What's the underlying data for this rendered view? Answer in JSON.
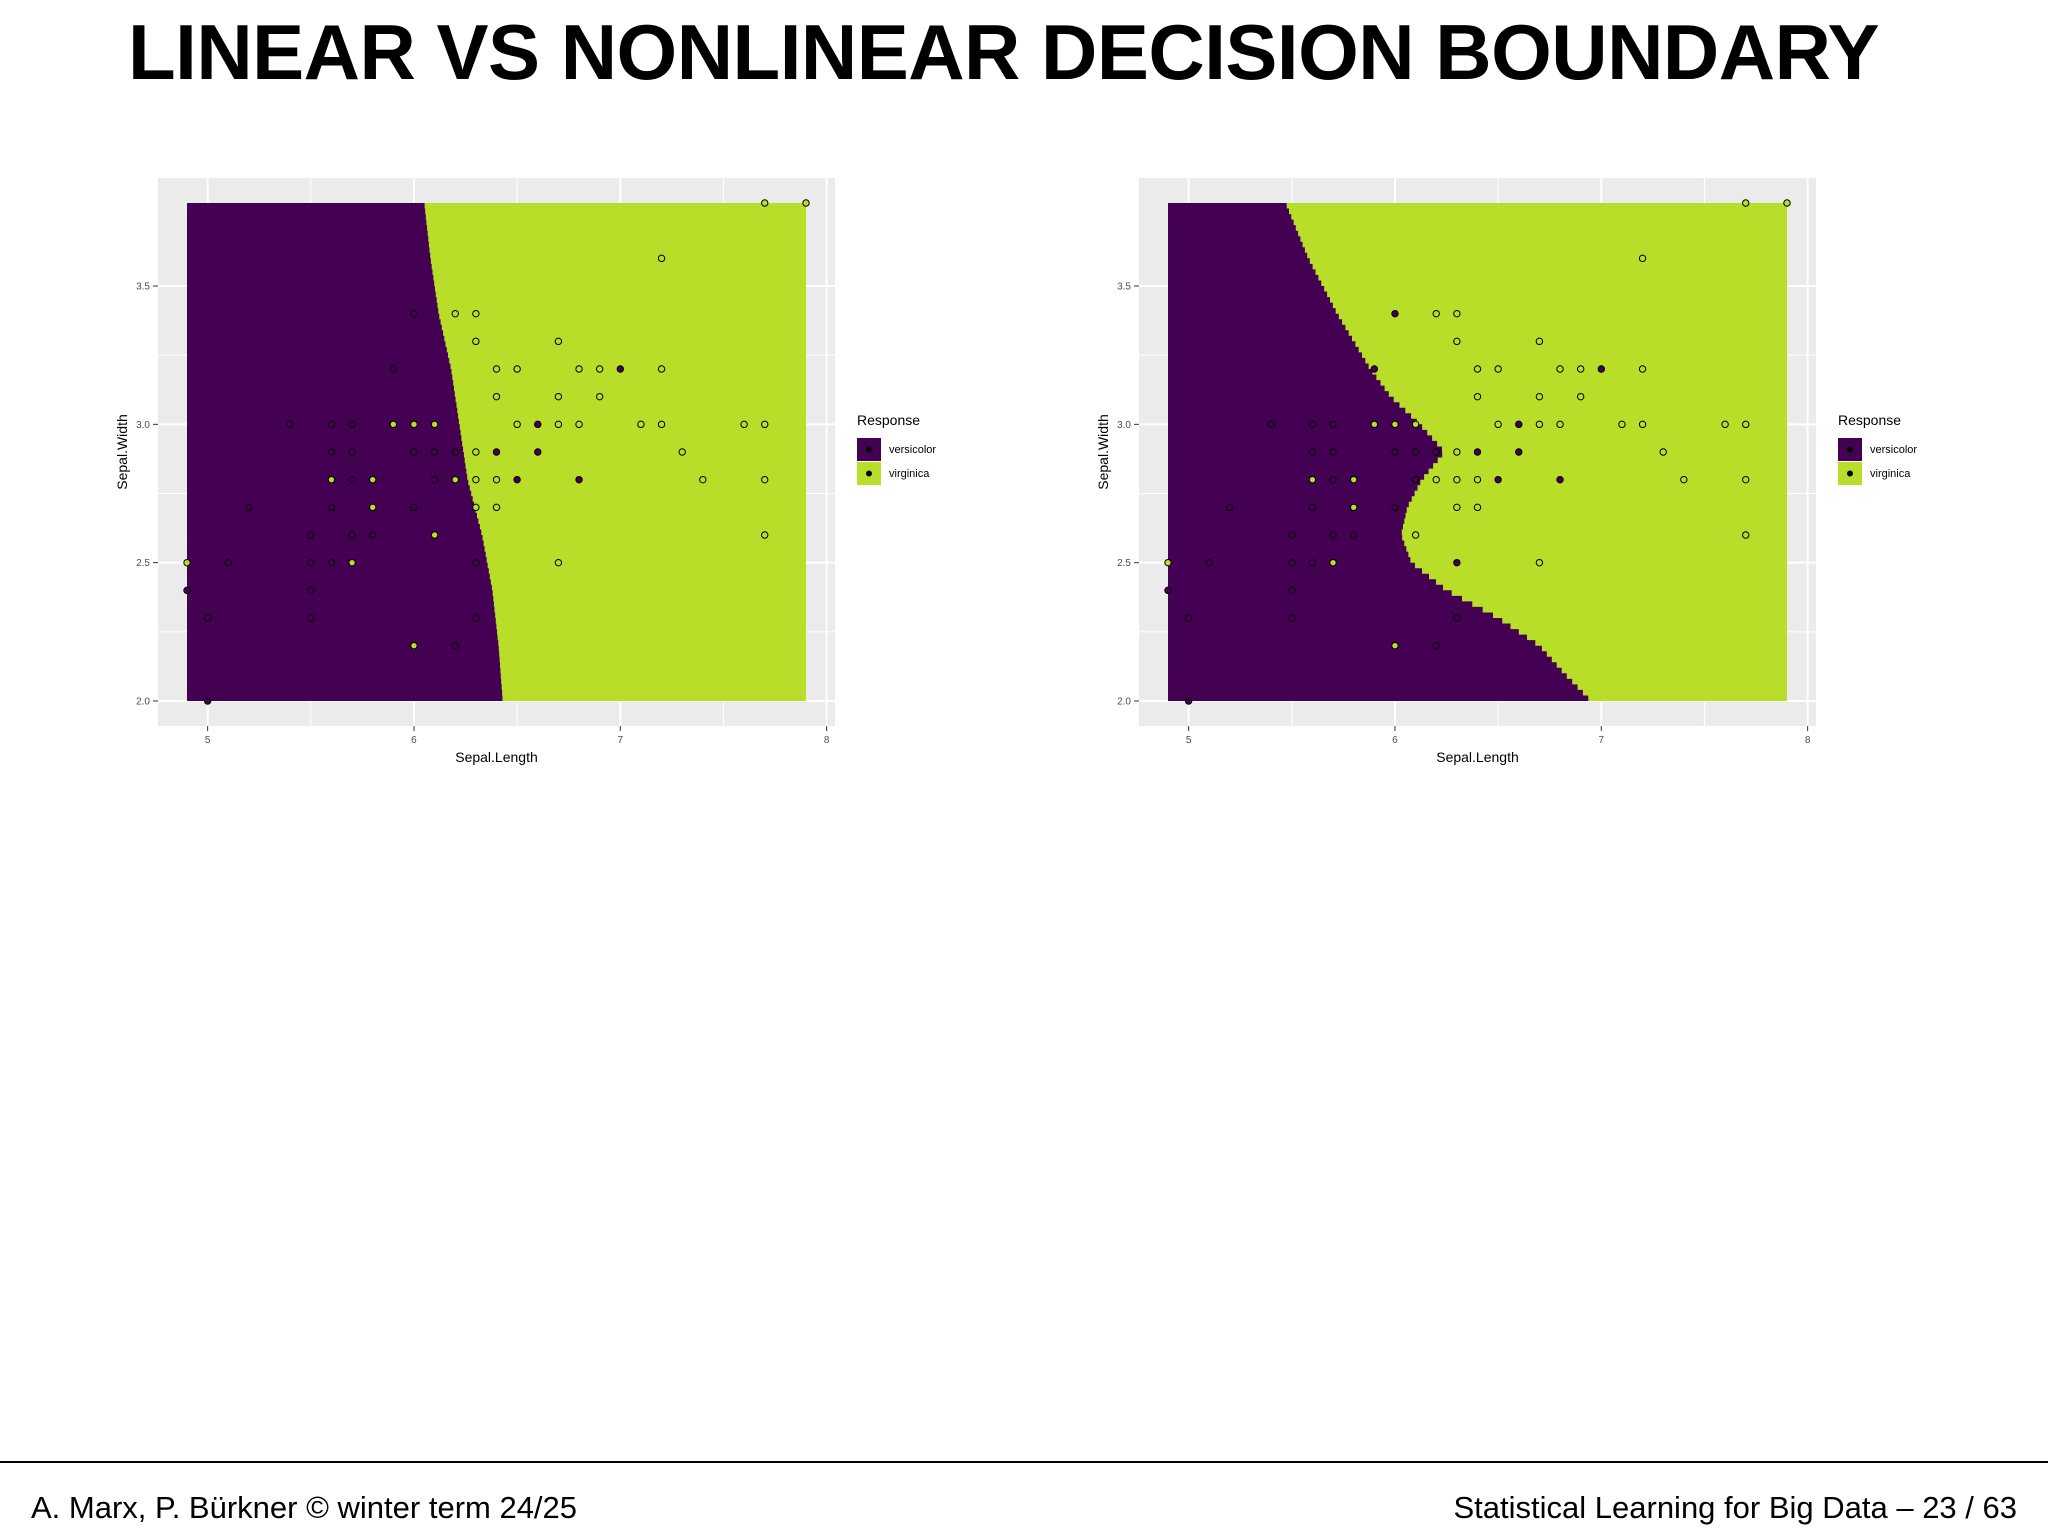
{
  "slide": {
    "title": "LINEAR VS NONLINEAR DECISION BOUNDARY"
  },
  "footer": {
    "left_text": "A. Marx, P. Bürkner  ©  winter term 24/25",
    "right_text": "Statistical Learning for Big Data  –  23 / 63"
  },
  "colors": {
    "versicolor": "#440154",
    "virginica": "#b8de29",
    "panel_background": "#ebebeb",
    "grid": "#ffffff"
  },
  "chart_data": [
    {
      "type": "heatmap",
      "boundary": "linear",
      "xlabel": "Sepal.Length",
      "ylabel": "Sepal.Width",
      "xlim": [
        4.9,
        7.9
      ],
      "ylim": [
        2.0,
        3.8
      ],
      "x_ticks": [
        5,
        6,
        7,
        8
      ],
      "x_tick_labels": [
        "5",
        "6",
        "7",
        "8"
      ],
      "y_ticks": [
        2.0,
        2.5,
        3.0,
        3.5
      ],
      "y_tick_labels": [
        "2.0",
        "2.5",
        "3.0",
        "3.5"
      ],
      "grid": true,
      "legend": {
        "title": "Response",
        "placement": "right",
        "entries": [
          "versicolor",
          "virginica"
        ]
      },
      "decision_boundary": [
        {
          "y": 2.0,
          "x": 6.43
        },
        {
          "y": 2.2,
          "x": 6.41
        },
        {
          "y": 2.4,
          "x": 6.38
        },
        {
          "y": 2.6,
          "x": 6.33
        },
        {
          "y": 2.8,
          "x": 6.26
        },
        {
          "y": 3.0,
          "x": 6.22
        },
        {
          "y": 3.2,
          "x": 6.18
        },
        {
          "y": 3.4,
          "x": 6.12
        },
        {
          "y": 3.6,
          "x": 6.08
        },
        {
          "y": 3.8,
          "x": 6.05
        }
      ],
      "left_class": "versicolor",
      "right_class": "virginica",
      "points": [
        {
          "x": 4.9,
          "y": 2.5,
          "class": "virginica"
        },
        {
          "x": 4.9,
          "y": 2.4,
          "class": "versicolor"
        },
        {
          "x": 5.0,
          "y": 2.3,
          "class": "versicolor"
        },
        {
          "x": 5.0,
          "y": 2.0,
          "class": "versicolor"
        },
        {
          "x": 5.1,
          "y": 2.5,
          "class": "versicolor"
        },
        {
          "x": 5.2,
          "y": 2.7,
          "class": "versicolor"
        },
        {
          "x": 5.4,
          "y": 3.0,
          "class": "versicolor"
        },
        {
          "x": 5.5,
          "y": 2.6,
          "class": "versicolor"
        },
        {
          "x": 5.5,
          "y": 2.5,
          "class": "versicolor"
        },
        {
          "x": 5.5,
          "y": 2.4,
          "class": "versicolor"
        },
        {
          "x": 5.5,
          "y": 2.3,
          "class": "versicolor"
        },
        {
          "x": 5.6,
          "y": 3.0,
          "class": "versicolor"
        },
        {
          "x": 5.6,
          "y": 2.9,
          "class": "versicolor"
        },
        {
          "x": 5.6,
          "y": 2.8,
          "class": "virginica"
        },
        {
          "x": 5.6,
          "y": 2.7,
          "class": "versicolor"
        },
        {
          "x": 5.6,
          "y": 2.5,
          "class": "versicolor"
        },
        {
          "x": 5.7,
          "y": 3.0,
          "class": "versicolor"
        },
        {
          "x": 5.7,
          "y": 2.9,
          "class": "versicolor"
        },
        {
          "x": 5.7,
          "y": 2.8,
          "class": "versicolor"
        },
        {
          "x": 5.7,
          "y": 2.6,
          "class": "versicolor"
        },
        {
          "x": 5.7,
          "y": 2.5,
          "class": "virginica"
        },
        {
          "x": 5.8,
          "y": 2.8,
          "class": "virginica"
        },
        {
          "x": 5.8,
          "y": 2.7,
          "class": "virginica"
        },
        {
          "x": 5.8,
          "y": 2.6,
          "class": "versicolor"
        },
        {
          "x": 5.9,
          "y": 3.2,
          "class": "versicolor"
        },
        {
          "x": 5.9,
          "y": 3.0,
          "class": "virginica"
        },
        {
          "x": 6.0,
          "y": 3.4,
          "class": "versicolor"
        },
        {
          "x": 6.0,
          "y": 3.0,
          "class": "virginica"
        },
        {
          "x": 6.0,
          "y": 2.9,
          "class": "versicolor"
        },
        {
          "x": 6.0,
          "y": 2.7,
          "class": "versicolor"
        },
        {
          "x": 6.0,
          "y": 2.2,
          "class": "virginica"
        },
        {
          "x": 6.1,
          "y": 3.0,
          "class": "virginica"
        },
        {
          "x": 6.1,
          "y": 2.9,
          "class": "versicolor"
        },
        {
          "x": 6.1,
          "y": 2.8,
          "class": "versicolor"
        },
        {
          "x": 6.1,
          "y": 2.6,
          "class": "virginica"
        },
        {
          "x": 6.2,
          "y": 3.4,
          "class": "virginica"
        },
        {
          "x": 6.2,
          "y": 2.9,
          "class": "versicolor"
        },
        {
          "x": 6.2,
          "y": 2.8,
          "class": "virginica"
        },
        {
          "x": 6.2,
          "y": 2.2,
          "class": "versicolor"
        },
        {
          "x": 6.3,
          "y": 3.4,
          "class": "virginica"
        },
        {
          "x": 6.3,
          "y": 3.3,
          "class": "virginica"
        },
        {
          "x": 6.3,
          "y": 2.9,
          "class": "virginica"
        },
        {
          "x": 6.3,
          "y": 2.8,
          "class": "virginica"
        },
        {
          "x": 6.3,
          "y": 2.7,
          "class": "virginica"
        },
        {
          "x": 6.3,
          "y": 2.5,
          "class": "versicolor"
        },
        {
          "x": 6.3,
          "y": 2.3,
          "class": "versicolor"
        },
        {
          "x": 6.4,
          "y": 3.2,
          "class": "virginica"
        },
        {
          "x": 6.4,
          "y": 3.1,
          "class": "virginica"
        },
        {
          "x": 6.4,
          "y": 2.9,
          "class": "versicolor"
        },
        {
          "x": 6.4,
          "y": 2.8,
          "class": "virginica"
        },
        {
          "x": 6.4,
          "y": 2.7,
          "class": "virginica"
        },
        {
          "x": 6.5,
          "y": 3.2,
          "class": "virginica"
        },
        {
          "x": 6.5,
          "y": 3.0,
          "class": "virginica"
        },
        {
          "x": 6.5,
          "y": 2.8,
          "class": "versicolor"
        },
        {
          "x": 6.6,
          "y": 3.0,
          "class": "versicolor"
        },
        {
          "x": 6.6,
          "y": 2.9,
          "class": "versicolor"
        },
        {
          "x": 6.7,
          "y": 3.3,
          "class": "virginica"
        },
        {
          "x": 6.7,
          "y": 3.1,
          "class": "virginica"
        },
        {
          "x": 6.7,
          "y": 3.0,
          "class": "virginica"
        },
        {
          "x": 6.7,
          "y": 2.5,
          "class": "virginica"
        },
        {
          "x": 6.8,
          "y": 3.2,
          "class": "virginica"
        },
        {
          "x": 6.8,
          "y": 3.0,
          "class": "virginica"
        },
        {
          "x": 6.8,
          "y": 2.8,
          "class": "versicolor"
        },
        {
          "x": 6.9,
          "y": 3.2,
          "class": "virginica"
        },
        {
          "x": 6.9,
          "y": 3.1,
          "class": "virginica"
        },
        {
          "x": 7.0,
          "y": 3.2,
          "class": "versicolor"
        },
        {
          "x": 7.1,
          "y": 3.0,
          "class": "virginica"
        },
        {
          "x": 7.2,
          "y": 3.6,
          "class": "virginica"
        },
        {
          "x": 7.2,
          "y": 3.2,
          "class": "virginica"
        },
        {
          "x": 7.2,
          "y": 3.0,
          "class": "virginica"
        },
        {
          "x": 7.3,
          "y": 2.9,
          "class": "virginica"
        },
        {
          "x": 7.4,
          "y": 2.8,
          "class": "virginica"
        },
        {
          "x": 7.6,
          "y": 3.0,
          "class": "virginica"
        },
        {
          "x": 7.7,
          "y": 3.8,
          "class": "virginica"
        },
        {
          "x": 7.7,
          "y": 3.0,
          "class": "virginica"
        },
        {
          "x": 7.7,
          "y": 2.8,
          "class": "virginica"
        },
        {
          "x": 7.7,
          "y": 2.6,
          "class": "virginica"
        },
        {
          "x": 7.9,
          "y": 3.8,
          "class": "virginica"
        }
      ]
    },
    {
      "type": "heatmap",
      "boundary": "nonlinear",
      "xlabel": "Sepal.Length",
      "ylabel": "Sepal.Width",
      "xlim": [
        4.9,
        7.9
      ],
      "ylim": [
        2.0,
        3.8
      ],
      "x_ticks": [
        5,
        6,
        7,
        8
      ],
      "x_tick_labels": [
        "5",
        "6",
        "7",
        "8"
      ],
      "y_ticks": [
        2.0,
        2.5,
        3.0,
        3.5
      ],
      "y_tick_labels": [
        "2.0",
        "2.5",
        "3.0",
        "3.5"
      ],
      "grid": true,
      "legend": {
        "title": "Response",
        "placement": "right",
        "entries": [
          "versicolor",
          "virginica"
        ]
      },
      "decision_boundary": [
        {
          "y": 2.0,
          "x": 6.95
        },
        {
          "y": 2.1,
          "x": 6.82
        },
        {
          "y": 2.2,
          "x": 6.7
        },
        {
          "y": 2.3,
          "x": 6.5
        },
        {
          "y": 2.4,
          "x": 6.25
        },
        {
          "y": 2.5,
          "x": 6.08
        },
        {
          "y": 2.6,
          "x": 6.03
        },
        {
          "y": 2.7,
          "x": 6.06
        },
        {
          "y": 2.8,
          "x": 6.13
        },
        {
          "y": 2.9,
          "x": 6.24
        },
        {
          "y": 3.0,
          "x": 6.12
        },
        {
          "y": 3.1,
          "x": 5.98
        },
        {
          "y": 3.2,
          "x": 5.88
        },
        {
          "y": 3.4,
          "x": 5.72
        },
        {
          "y": 3.6,
          "x": 5.58
        },
        {
          "y": 3.8,
          "x": 5.47
        }
      ],
      "left_class": "versicolor",
      "right_class": "virginica",
      "points": [
        {
          "x": 4.9,
          "y": 2.5,
          "class": "virginica"
        },
        {
          "x": 4.9,
          "y": 2.4,
          "class": "versicolor"
        },
        {
          "x": 5.0,
          "y": 2.3,
          "class": "versicolor"
        },
        {
          "x": 5.0,
          "y": 2.0,
          "class": "versicolor"
        },
        {
          "x": 5.1,
          "y": 2.5,
          "class": "versicolor"
        },
        {
          "x": 5.2,
          "y": 2.7,
          "class": "versicolor"
        },
        {
          "x": 5.4,
          "y": 3.0,
          "class": "versicolor"
        },
        {
          "x": 5.5,
          "y": 2.6,
          "class": "versicolor"
        },
        {
          "x": 5.5,
          "y": 2.5,
          "class": "versicolor"
        },
        {
          "x": 5.5,
          "y": 2.4,
          "class": "versicolor"
        },
        {
          "x": 5.5,
          "y": 2.3,
          "class": "versicolor"
        },
        {
          "x": 5.6,
          "y": 3.0,
          "class": "versicolor"
        },
        {
          "x": 5.6,
          "y": 2.9,
          "class": "versicolor"
        },
        {
          "x": 5.6,
          "y": 2.8,
          "class": "virginica"
        },
        {
          "x": 5.6,
          "y": 2.7,
          "class": "versicolor"
        },
        {
          "x": 5.6,
          "y": 2.5,
          "class": "versicolor"
        },
        {
          "x": 5.7,
          "y": 3.0,
          "class": "versicolor"
        },
        {
          "x": 5.7,
          "y": 2.9,
          "class": "versicolor"
        },
        {
          "x": 5.7,
          "y": 2.8,
          "class": "versicolor"
        },
        {
          "x": 5.7,
          "y": 2.6,
          "class": "versicolor"
        },
        {
          "x": 5.7,
          "y": 2.5,
          "class": "virginica"
        },
        {
          "x": 5.8,
          "y": 2.8,
          "class": "virginica"
        },
        {
          "x": 5.8,
          "y": 2.7,
          "class": "virginica"
        },
        {
          "x": 5.8,
          "y": 2.6,
          "class": "versicolor"
        },
        {
          "x": 5.9,
          "y": 3.2,
          "class": "versicolor"
        },
        {
          "x": 5.9,
          "y": 3.0,
          "class": "virginica"
        },
        {
          "x": 6.0,
          "y": 3.4,
          "class": "versicolor"
        },
        {
          "x": 6.0,
          "y": 3.0,
          "class": "virginica"
        },
        {
          "x": 6.0,
          "y": 2.9,
          "class": "versicolor"
        },
        {
          "x": 6.0,
          "y": 2.7,
          "class": "versicolor"
        },
        {
          "x": 6.0,
          "y": 2.2,
          "class": "virginica"
        },
        {
          "x": 6.1,
          "y": 3.0,
          "class": "virginica"
        },
        {
          "x": 6.1,
          "y": 2.9,
          "class": "versicolor"
        },
        {
          "x": 6.1,
          "y": 2.8,
          "class": "versicolor"
        },
        {
          "x": 6.1,
          "y": 2.6,
          "class": "virginica"
        },
        {
          "x": 6.2,
          "y": 3.4,
          "class": "virginica"
        },
        {
          "x": 6.2,
          "y": 2.9,
          "class": "versicolor"
        },
        {
          "x": 6.2,
          "y": 2.8,
          "class": "virginica"
        },
        {
          "x": 6.2,
          "y": 2.2,
          "class": "versicolor"
        },
        {
          "x": 6.3,
          "y": 3.4,
          "class": "virginica"
        },
        {
          "x": 6.3,
          "y": 3.3,
          "class": "virginica"
        },
        {
          "x": 6.3,
          "y": 2.9,
          "class": "virginica"
        },
        {
          "x": 6.3,
          "y": 2.8,
          "class": "virginica"
        },
        {
          "x": 6.3,
          "y": 2.7,
          "class": "virginica"
        },
        {
          "x": 6.3,
          "y": 2.5,
          "class": "versicolor"
        },
        {
          "x": 6.3,
          "y": 2.3,
          "class": "versicolor"
        },
        {
          "x": 6.4,
          "y": 3.2,
          "class": "virginica"
        },
        {
          "x": 6.4,
          "y": 3.1,
          "class": "virginica"
        },
        {
          "x": 6.4,
          "y": 2.9,
          "class": "versicolor"
        },
        {
          "x": 6.4,
          "y": 2.8,
          "class": "virginica"
        },
        {
          "x": 6.4,
          "y": 2.7,
          "class": "virginica"
        },
        {
          "x": 6.5,
          "y": 3.2,
          "class": "virginica"
        },
        {
          "x": 6.5,
          "y": 3.0,
          "class": "virginica"
        },
        {
          "x": 6.5,
          "y": 2.8,
          "class": "versicolor"
        },
        {
          "x": 6.6,
          "y": 3.0,
          "class": "versicolor"
        },
        {
          "x": 6.6,
          "y": 2.9,
          "class": "versicolor"
        },
        {
          "x": 6.7,
          "y": 3.3,
          "class": "virginica"
        },
        {
          "x": 6.7,
          "y": 3.1,
          "class": "virginica"
        },
        {
          "x": 6.7,
          "y": 3.0,
          "class": "virginica"
        },
        {
          "x": 6.7,
          "y": 2.5,
          "class": "virginica"
        },
        {
          "x": 6.8,
          "y": 3.2,
          "class": "virginica"
        },
        {
          "x": 6.8,
          "y": 3.0,
          "class": "virginica"
        },
        {
          "x": 6.8,
          "y": 2.8,
          "class": "versicolor"
        },
        {
          "x": 6.9,
          "y": 3.2,
          "class": "virginica"
        },
        {
          "x": 6.9,
          "y": 3.1,
          "class": "virginica"
        },
        {
          "x": 7.0,
          "y": 3.2,
          "class": "versicolor"
        },
        {
          "x": 7.1,
          "y": 3.0,
          "class": "virginica"
        },
        {
          "x": 7.2,
          "y": 3.6,
          "class": "virginica"
        },
        {
          "x": 7.2,
          "y": 3.2,
          "class": "virginica"
        },
        {
          "x": 7.2,
          "y": 3.0,
          "class": "virginica"
        },
        {
          "x": 7.3,
          "y": 2.9,
          "class": "virginica"
        },
        {
          "x": 7.4,
          "y": 2.8,
          "class": "virginica"
        },
        {
          "x": 7.6,
          "y": 3.0,
          "class": "virginica"
        },
        {
          "x": 7.7,
          "y": 3.8,
          "class": "virginica"
        },
        {
          "x": 7.7,
          "y": 3.0,
          "class": "virginica"
        },
        {
          "x": 7.7,
          "y": 2.8,
          "class": "virginica"
        },
        {
          "x": 7.7,
          "y": 2.6,
          "class": "virginica"
        },
        {
          "x": 7.9,
          "y": 3.8,
          "class": "virginica"
        }
      ]
    }
  ]
}
